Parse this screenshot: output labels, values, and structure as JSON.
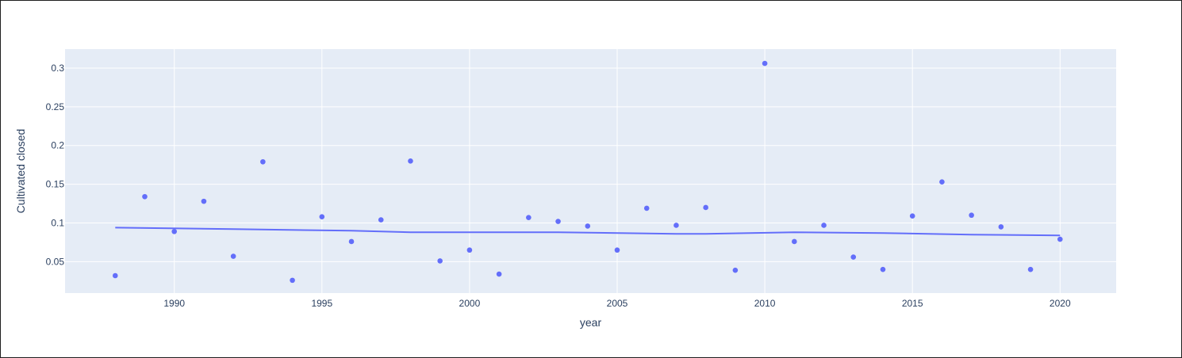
{
  "chart_data": {
    "type": "scatter",
    "xlabel": "year",
    "ylabel": "Cultivated closed",
    "xlim": [
      1986.3,
      2021.9
    ],
    "ylim": [
      0.0095,
      0.3245
    ],
    "x_ticks": [
      1990,
      1995,
      2000,
      2005,
      2010,
      2015,
      2020
    ],
    "y_ticks": [
      0.05,
      0.1,
      0.15,
      0.2,
      0.25,
      0.3
    ],
    "grid": true,
    "legend": "none",
    "colors": {
      "marker": "#636efa",
      "line": "#636efa",
      "plot_bg": "#e5ecf6",
      "grid": "#ffffff",
      "text": "#2a3f5f"
    },
    "series": [
      {
        "mode": "markers",
        "x": [
          1988,
          1989,
          1990,
          1991,
          1992,
          1993,
          1994,
          1995,
          1996,
          1997,
          1998,
          1999,
          2000,
          2001,
          2002,
          2003,
          2004,
          2005,
          2006,
          2007,
          2008,
          2009,
          2010,
          2011,
          2012,
          2013,
          2014,
          2015,
          2016,
          2017,
          2018,
          2019,
          2020
        ],
        "y": [
          0.032,
          0.134,
          0.089,
          0.128,
          0.057,
          0.179,
          0.026,
          0.108,
          0.076,
          0.104,
          0.18,
          0.051,
          0.065,
          0.034,
          0.107,
          0.102,
          0.096,
          0.065,
          0.119,
          0.097,
          0.12,
          0.039,
          0.306,
          0.076,
          0.097,
          0.056,
          0.04,
          0.109,
          0.153,
          0.11,
          0.095,
          0.04,
          0.079
        ]
      },
      {
        "mode": "lines",
        "x": [
          1988,
          1992,
          1996,
          1998,
          2003,
          2007,
          2008,
          2011,
          2014,
          2017,
          2020
        ],
        "y": [
          0.094,
          0.092,
          0.09,
          0.088,
          0.088,
          0.086,
          0.086,
          0.088,
          0.087,
          0.085,
          0.084
        ]
      }
    ]
  }
}
